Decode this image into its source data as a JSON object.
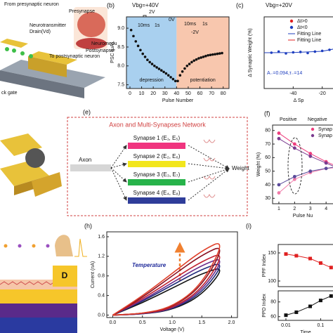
{
  "figure": {
    "panel_a": {
      "texts": [
        "From presynaptic neuron",
        "Presynapse",
        "Neurotransmitter",
        "Drain(Vd)",
        "Neuromodu",
        "Postsynapse",
        "To postsynaptic neuron",
        "ck gate"
      ]
    },
    "panel_g": {
      "label": "D"
    },
    "panel_e": {
      "panel": "(e)",
      "title": "Axon and Multi-Synapses Network",
      "axon": "Axon",
      "output": "Weight",
      "synapses": [
        {
          "label": "Synapse 1 (E₁, E₅)",
          "color": "#f0357f"
        },
        {
          "label": "Synapse 2 (E₂, E₆)",
          "color": "#f2e61c"
        },
        {
          "label": "Synapse 3 (E₃, E₇)",
          "color": "#27b34a"
        },
        {
          "label": "Synapse 4 (E₄, E₈)",
          "color": "#2f3d9a"
        }
      ]
    }
  },
  "chart_data": [
    {
      "type": "line",
      "panel": "(b)",
      "title": "Vbg=+40V",
      "xlabel": "Pulse Number",
      "ylabel": "PSC (μA)",
      "xlim": [
        -3,
        85
      ],
      "xticks": [
        0,
        10,
        20,
        30,
        40,
        50,
        60,
        70,
        80
      ],
      "ylim": [
        7.4,
        9.3
      ],
      "yticks": [
        7.5,
        {
          "value": 8,
          "label": "8.0"
        },
        8.5,
        {
          "value": 9,
          "label": "9.0"
        }
      ],
      "regions": [
        {
          "label": "depression",
          "from": -3,
          "to": 40,
          "color": "#a9d0ef"
        },
        {
          "label": "potentiation",
          "from": 40,
          "to": 85,
          "color": "#f8c7ae"
        }
      ],
      "annotations": [
        "2V",
        "10ms",
        "1s",
        "0V",
        "10ms",
        "1s",
        "-2V"
      ],
      "series": [
        {
          "color": "#111111",
          "style": "marker",
          "x": [
            1,
            3,
            5,
            7,
            9,
            11,
            13,
            15,
            17,
            19,
            21,
            23,
            25,
            27,
            29,
            31,
            33,
            35,
            37,
            39
          ],
          "values": [
            8.95,
            8.79,
            8.65,
            8.53,
            8.42,
            8.32,
            8.24,
            8.16,
            8.1,
            8.05,
            8.0,
            7.96,
            7.92,
            7.88,
            7.84,
            7.8,
            7.75,
            7.7,
            7.65,
            7.6
          ]
        },
        {
          "color": "#111111",
          "style": "marker",
          "x": [
            41,
            43,
            45,
            47,
            49,
            51,
            53,
            55,
            57,
            59,
            61,
            63,
            65,
            67,
            69,
            71,
            73,
            75,
            77,
            79
          ],
          "values": [
            7.6,
            7.75,
            7.85,
            7.93,
            8.0,
            8.05,
            8.1,
            8.14,
            8.17,
            8.2,
            8.22,
            8.24,
            8.26,
            8.28,
            8.29,
            8.3,
            8.31,
            8.32,
            8.33,
            8.34
          ]
        }
      ]
    },
    {
      "type": "scatter",
      "panel": "(c)",
      "title": "Vbg=+20V",
      "xlabel": "Δ Sp",
      "ylabel": "Δ Synaptic Weight (%)",
      "xlim": [
        -60,
        0
      ],
      "xticks": [
        -40,
        -20
      ],
      "ylim": [
        -10,
        10
      ],
      "annotations": [
        "A₋=0.094,τ₋=14"
      ],
      "series": [
        {
          "name": "Δt>0",
          "color": "#e02020",
          "style": "marker",
          "x": [],
          "values": []
        },
        {
          "name": "Δt<0",
          "color": "#1f3fbf",
          "style": "marker",
          "x": [
            -55,
            -50,
            -45,
            -40,
            -35,
            -30,
            -25,
            -20,
            -15,
            -10
          ],
          "values": [
            0,
            0.3,
            -0.2,
            0.1,
            0.2,
            -0.1,
            0.3,
            0.5,
            0.8,
            1.5
          ]
        },
        {
          "name": "Fitting Line",
          "color": "#1f3fbf",
          "style": "line",
          "x": [
            -60,
            -40,
            -20,
            -5
          ],
          "values": [
            0,
            0.05,
            0.4,
            1.6
          ]
        },
        {
          "name": "Fitting Line",
          "color": "#e02020",
          "style": "line",
          "x": [],
          "values": []
        }
      ]
    },
    {
      "type": "line",
      "panel": "(f)",
      "xlabel": "Pulse Nu",
      "ylabel": "Weight (%)",
      "xlim": [
        0.6,
        5.6
      ],
      "xticks": [
        1,
        2,
        3,
        4,
        5
      ],
      "ylim": [
        26,
        84
      ],
      "yticks": [
        30,
        40,
        50,
        60,
        70,
        80
      ],
      "annotations": [
        "Positive",
        "Negative"
      ],
      "series": [
        {
          "name": "Synap",
          "color": "#ee3d7d",
          "style": "linemarker",
          "x": [
            1,
            2,
            3,
            4,
            5
          ],
          "values": [
            78,
            70,
            63,
            57,
            52
          ]
        },
        {
          "name": "Synap",
          "color": "#7a3b8f",
          "style": "linemarker",
          "x": [
            1,
            2,
            3,
            4,
            5
          ],
          "values": [
            74,
            67,
            61,
            56,
            51
          ]
        },
        {
          "color": "#f07aa8",
          "style": "linemarker",
          "x": [
            1,
            2,
            3,
            4,
            5
          ],
          "values": [
            34,
            44,
            49,
            52,
            53
          ]
        },
        {
          "color": "#5a4a9a",
          "style": "linemarker",
          "x": [
            1,
            2,
            3,
            4,
            5
          ],
          "values": [
            40,
            46,
            50,
            52,
            54
          ]
        }
      ]
    },
    {
      "type": "line",
      "panel": "(h)",
      "xlabel": "Voltage (V)",
      "ylabel": "Current (nA)",
      "xlim": [
        -0.1,
        2.1
      ],
      "xticks": [
        {
          "value": 0,
          "label": "0.0"
        },
        0.5,
        {
          "value": 1,
          "label": "1.0"
        },
        1.5,
        {
          "value": 2,
          "label": "2.0"
        }
      ],
      "ylim": [
        -0.05,
        1.7
      ],
      "yticks": [
        {
          "value": 0,
          "label": "0.0"
        },
        0.4,
        0.8,
        1.2,
        1.6
      ],
      "annotations": [
        "Temperature"
      ],
      "x": [
        0,
        0.5,
        1,
        1.5,
        1.9,
        1.5,
        1,
        0.5,
        0
      ],
      "series": [
        {
          "color": "#111111",
          "style": "smooth",
          "values": [
            0,
            0.02,
            0.1,
            0.4,
            1.0,
            0.85,
            0.55,
            0.25,
            0
          ]
        },
        {
          "color": "#1f2a7a",
          "style": "smooth",
          "values": [
            0,
            0.02,
            0.11,
            0.44,
            1.1,
            0.94,
            0.61,
            0.28,
            0
          ]
        },
        {
          "color": "#6a2c8a",
          "style": "smooth",
          "values": [
            0,
            0.02,
            0.12,
            0.48,
            1.2,
            1.02,
            0.66,
            0.3,
            0
          ]
        },
        {
          "color": "#c02030",
          "style": "smooth",
          "values": [
            0,
            0.03,
            0.13,
            0.52,
            1.3,
            1.1,
            0.72,
            0.33,
            0
          ]
        },
        {
          "color": "#8a1020",
          "style": "smooth",
          "values": [
            0,
            0.03,
            0.15,
            0.58,
            1.45,
            1.23,
            0.8,
            0.36,
            0
          ]
        },
        {
          "color": "#e0402a",
          "style": "smooth",
          "values": [
            0,
            0.03,
            0.16,
            0.62,
            1.55,
            1.32,
            0.85,
            0.39,
            0
          ]
        }
      ]
    },
    {
      "type": "line",
      "panel": "(i)",
      "ylabel": "PPF Index",
      "xlog": true,
      "xlim": [
        0.006,
        0.3
      ],
      "ylim": [
        90,
        165
      ],
      "yticks": [
        100,
        150
      ],
      "series": [
        {
          "color": "#e02020",
          "style": "linesquare",
          "x": [
            0.01,
            0.02,
            0.05,
            0.1,
            0.2
          ],
          "values": [
            148,
            145,
            140,
            132,
            124
          ]
        }
      ]
    },
    {
      "type": "line",
      "xlabel": "Time",
      "ylabel": "PPD Index",
      "xlog": true,
      "xlim": [
        0.006,
        0.3
      ],
      "xticks": [
        0.01,
        0.1
      ],
      "ylim": [
        55,
        95
      ],
      "yticks": [
        60,
        80
      ],
      "series": [
        {
          "color": "#111111",
          "style": "linesquare",
          "x": [
            0.01,
            0.02,
            0.05,
            0.1,
            0.2
          ],
          "values": [
            62,
            66,
            74,
            82,
            88
          ]
        }
      ]
    }
  ]
}
